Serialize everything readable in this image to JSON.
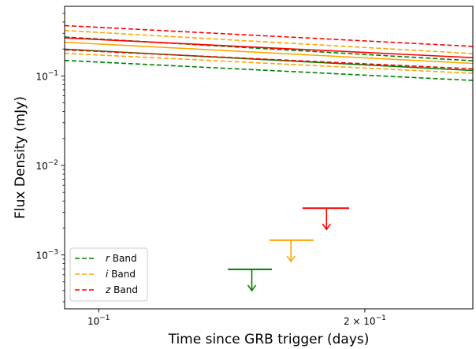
{
  "chart_data": {
    "type": "line",
    "xlabel": "Time since GRB trigger (days)",
    "ylabel": "Flux Density (mJy)",
    "x_scale": "log",
    "y_scale": "log",
    "xlim": [
      0.0915,
      0.265
    ],
    "ylim": [
      0.00025,
      0.6
    ],
    "x_ticks": [
      {
        "value": 0.1,
        "label": "10",
        "exp": "−1"
      },
      {
        "value": 0.2,
        "label": "2 × 10",
        "exp": "−1"
      }
    ],
    "y_ticks": [
      {
        "value": 0.001,
        "label": "10",
        "exp": "−3"
      },
      {
        "value": 0.01,
        "label": "10",
        "exp": "−2"
      },
      {
        "value": 0.1,
        "label": "10",
        "exp": "−1"
      }
    ],
    "legend_position": "lower-left",
    "legend": [
      {
        "band": "r",
        "suffix": " Band",
        "color": "#008000"
      },
      {
        "band": "i",
        "suffix": " Band",
        "color": "#ffa500"
      },
      {
        "band": "z",
        "suffix": " Band",
        "color": "#ff0000"
      }
    ],
    "series": [
      {
        "band": "r",
        "style": "dashed",
        "color": "#008000",
        "x": [
          0.0915,
          0.265
        ],
        "y": [
          0.149,
          0.089
        ]
      },
      {
        "band": "r",
        "style": "solid",
        "color": "#008000",
        "x": [
          0.0915,
          0.265
        ],
        "y": [
          0.199,
          0.115
        ]
      },
      {
        "band": "r",
        "style": "dashed",
        "color": "#008000",
        "x": [
          0.0915,
          0.265
        ],
        "y": [
          0.272,
          0.148
        ]
      },
      {
        "band": "i",
        "style": "dashed",
        "color": "#ffa500",
        "x": [
          0.0915,
          0.265
        ],
        "y": [
          0.179,
          0.107
        ]
      },
      {
        "band": "i",
        "style": "solid",
        "color": "#ffa500",
        "x": [
          0.0915,
          0.265
        ],
        "y": [
          0.238,
          0.138
        ]
      },
      {
        "band": "i",
        "style": "dashed",
        "color": "#ffa500",
        "x": [
          0.0915,
          0.265
        ],
        "y": [
          0.322,
          0.178
        ]
      },
      {
        "band": "z",
        "style": "dashed",
        "color": "#ff0000",
        "x": [
          0.0915,
          0.265
        ],
        "y": [
          0.196,
          0.12
        ]
      },
      {
        "band": "z",
        "style": "solid",
        "color": "#ff0000",
        "x": [
          0.0915,
          0.265
        ],
        "y": [
          0.266,
          0.16
        ]
      },
      {
        "band": "z",
        "style": "dashed",
        "color": "#ff0000",
        "x": [
          0.0915,
          0.265
        ],
        "y": [
          0.365,
          0.214
        ]
      }
    ],
    "upper_limits": [
      {
        "band": "r",
        "color": "#008000",
        "x": 0.149,
        "y": 0.00069,
        "x_err": [
          0.14,
          0.157
        ]
      },
      {
        "band": "i",
        "color": "#ffa500",
        "x": 0.165,
        "y": 0.00146,
        "x_err": [
          0.156,
          0.175
        ]
      },
      {
        "band": "z",
        "color": "#ff0000",
        "x": 0.181,
        "y": 0.00333,
        "x_err": [
          0.17,
          0.192
        ]
      }
    ]
  }
}
